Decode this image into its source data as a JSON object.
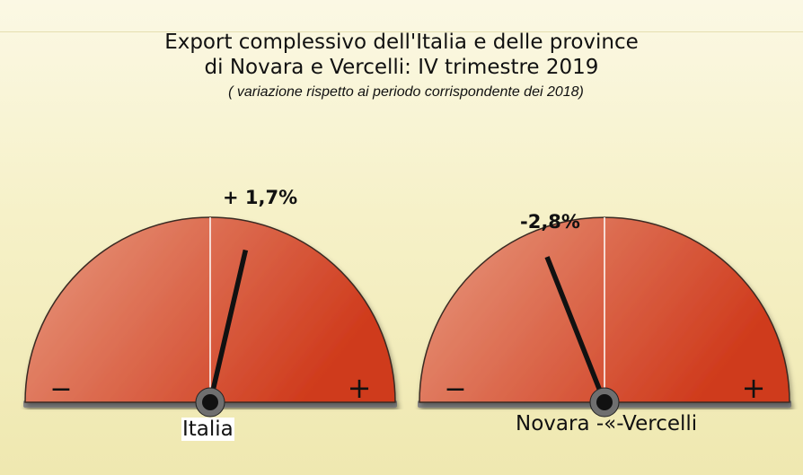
{
  "title_line1": "Export complessivo dell'Italia e delle province",
  "title_line2": "di Novara e Vercelli: IV trimestre 2019",
  "subtitle": "( variazione rispetto ai periodo corrispondente dei 2018)",
  "chart_data": {
    "type": "gauge",
    "title": "Export complessivo dell'Italia e delle province di Novara e Vercelli: IV trimestre 2019",
    "subtitle": "( variazione rispetto ai periodo corrispondente dei 2018)",
    "unit": "%",
    "gauges": [
      {
        "name": "Italia",
        "value": 1.7,
        "value_label": "+ 1,7%",
        "min_symbol": "−",
        "max_symbol": "+"
      },
      {
        "name": "Novara -«-Vercelli",
        "value": -2.8,
        "value_label": "-2,8%",
        "min_symbol": "−",
        "max_symbol": "+"
      }
    ]
  },
  "colors": {
    "gauge_light": "#e89a80",
    "gauge_dark": "#cf3a1c",
    "needle": "#111111",
    "center_line": "#ffffff"
  }
}
